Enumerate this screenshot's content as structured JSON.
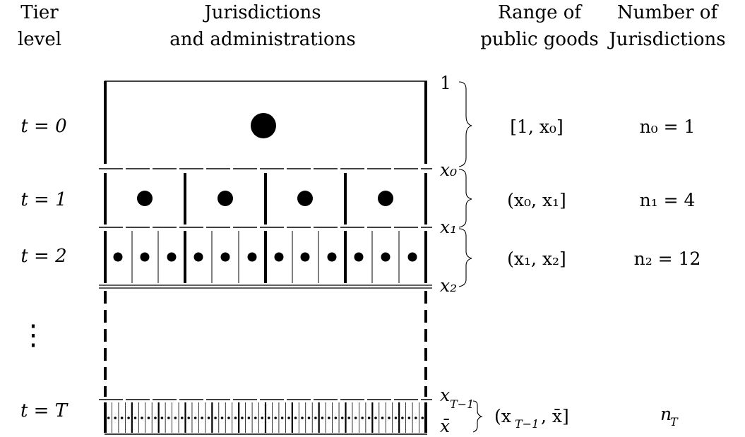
{
  "headers": {
    "tier_line1": "Tier",
    "tier_line2": "level",
    "juris_line1": "Jurisdictions",
    "juris_line2": "and administrations",
    "range_line1": "Range of",
    "range_line2": "public goods",
    "number_line1": "Number of",
    "number_line2": "Jurisdictions"
  },
  "tiers": [
    {
      "tier_label": "t = 0",
      "range": "[1, x₀]",
      "count": "n₀ = 1",
      "jurisdictions": 1,
      "admins_per_jurisdiction": 1
    },
    {
      "tier_label": "t = 1",
      "range": "(x₀, x₁]",
      "count": "n₁ = 4",
      "jurisdictions": 4,
      "admins_per_jurisdiction": 1
    },
    {
      "tier_label": "t = 2",
      "range": "(x₁, x₂]",
      "count": "n₂ = 12",
      "jurisdictions": 4,
      "admins_per_jurisdiction": 3
    },
    {
      "tier_label": "t = T",
      "range": "(x",
      "range_sub": "T−1",
      "range_end": ", x̄]",
      "count": "n",
      "count_sub": "T",
      "jurisdictions": 12,
      "admins_per_jurisdiction": 4
    }
  ],
  "ellipsis": "⋮",
  "boundaries": {
    "b1": "1",
    "b_x0": "x₀",
    "b_x1": "x₁",
    "b_x2": "x₂",
    "b_xT1": "x",
    "b_xT1_sub": "T−1",
    "b_xbar": "x̄"
  }
}
